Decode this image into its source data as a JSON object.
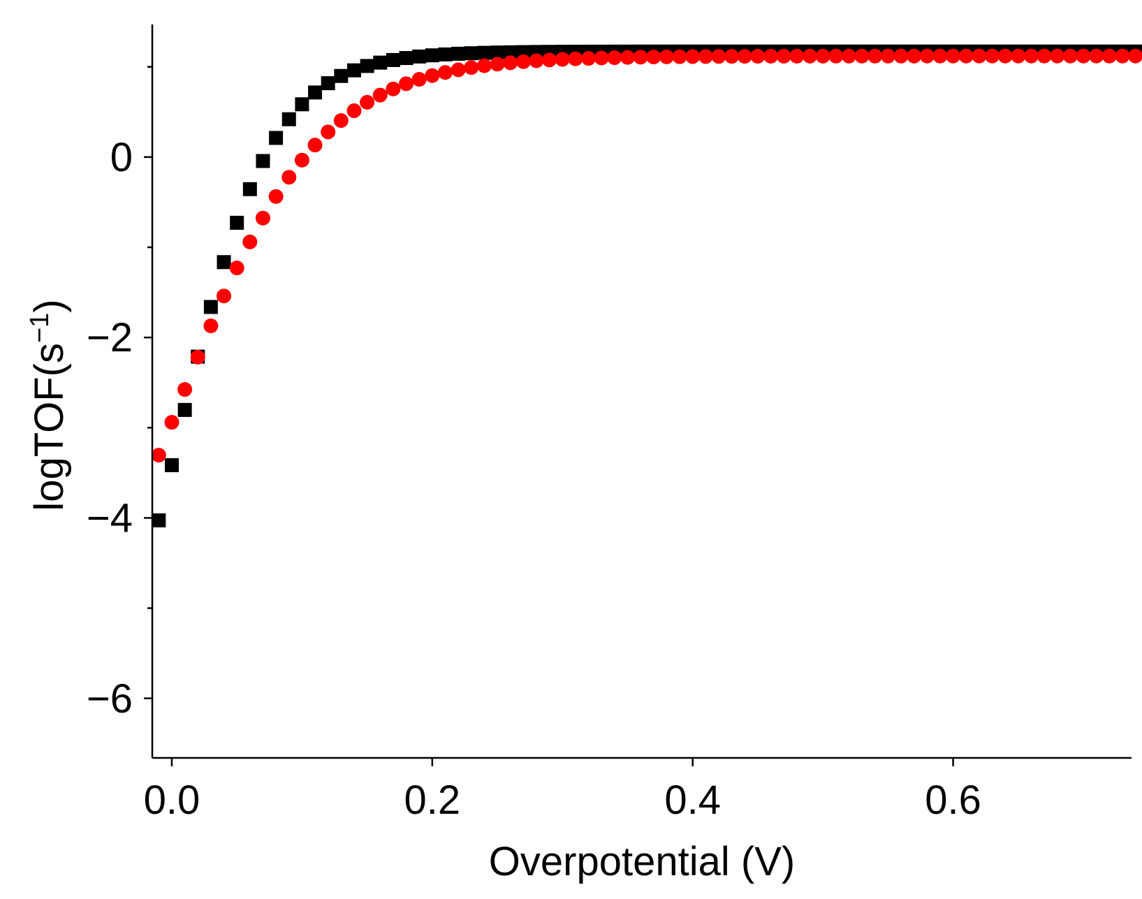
{
  "chart_data": {
    "type": "scatter",
    "title": "",
    "xlabel": "Overpotential (V)",
    "ylabel_main": "logTOF(s",
    "ylabel_sup": "−1",
    "ylabel_close": ")",
    "xlim": [
      -0.015,
      0.737
    ],
    "ylim": [
      -6.66,
      1.47
    ],
    "x_ticks": [
      {
        "value": 0.0,
        "label": "0.0"
      },
      {
        "value": 0.2,
        "label": "0.2"
      },
      {
        "value": 0.4,
        "label": "0.4"
      },
      {
        "value": 0.6,
        "label": "0.6"
      }
    ],
    "y_ticks": [
      {
        "value": 0,
        "label": "0"
      },
      {
        "value": -2,
        "label": "−2"
      },
      {
        "value": -4,
        "label": "−4"
      },
      {
        "value": -6,
        "label": "−6"
      }
    ],
    "y_minor_ticks": [
      1,
      -1,
      -3,
      -5
    ],
    "grid": false,
    "series": [
      {
        "name": "black squares",
        "marker": "square",
        "color": "#000000",
        "x_start": -0.01,
        "x_end": 0.735,
        "x_step": 0.01,
        "formula": "logistic",
        "y_max": 1.17,
        "y_min": -8.0,
        "k_per_V": 26.86
      },
      {
        "name": "red circles",
        "marker": "circle",
        "color": "#ff0000",
        "x_start": -0.01,
        "x_end": 0.735,
        "x_step": 0.01,
        "formula": "logistic",
        "y_max": 1.12,
        "y_min": -7.0,
        "k_per_V": 17.98
      }
    ]
  }
}
